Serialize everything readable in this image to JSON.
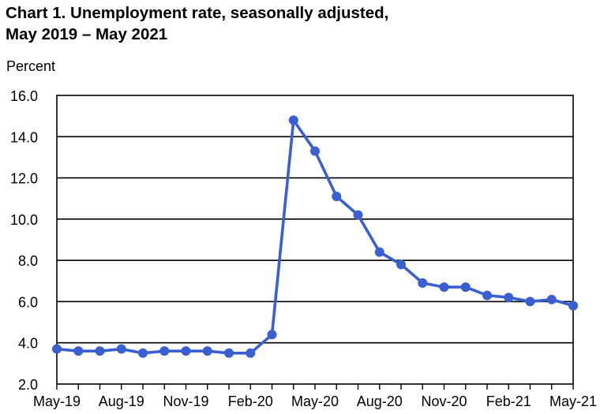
{
  "chart_data": {
    "type": "line",
    "title_line1": "Chart 1. Unemployment rate, seasonally adjusted,",
    "title_line2": "May 2019 – May 2021",
    "ylabel": "Percent",
    "xlabel": "",
    "ylim": [
      2.0,
      16.0
    ],
    "ytick_labels": [
      "2.0",
      "4.0",
      "6.0",
      "8.0",
      "10.0",
      "12.0",
      "14.0",
      "16.0"
    ],
    "ytick_values": [
      2.0,
      4.0,
      6.0,
      8.0,
      10.0,
      12.0,
      14.0,
      16.0
    ],
    "x": [
      "May-19",
      "Jun-19",
      "Jul-19",
      "Aug-19",
      "Sep-19",
      "Oct-19",
      "Nov-19",
      "Dec-19",
      "Jan-20",
      "Feb-20",
      "Mar-20",
      "Apr-20",
      "May-20",
      "Jun-20",
      "Jul-20",
      "Aug-20",
      "Sep-20",
      "Oct-20",
      "Nov-20",
      "Dec-20",
      "Jan-21",
      "Feb-21",
      "Mar-21",
      "Apr-21",
      "May-21"
    ],
    "xtick_labels": [
      "May-19",
      "Aug-19",
      "Nov-19",
      "Feb-20",
      "May-20",
      "Aug-20",
      "Nov-20",
      "Feb-21",
      "May-21"
    ],
    "series": [
      {
        "values": [
          3.7,
          3.6,
          3.6,
          3.7,
          3.5,
          3.6,
          3.6,
          3.6,
          3.5,
          3.5,
          4.4,
          14.8,
          13.3,
          11.1,
          10.2,
          8.4,
          7.8,
          6.9,
          6.7,
          6.7,
          6.3,
          6.2,
          6.0,
          6.1,
          5.8
        ],
        "color": "#3a5fd0"
      }
    ],
    "grid": true,
    "legend": "none"
  }
}
